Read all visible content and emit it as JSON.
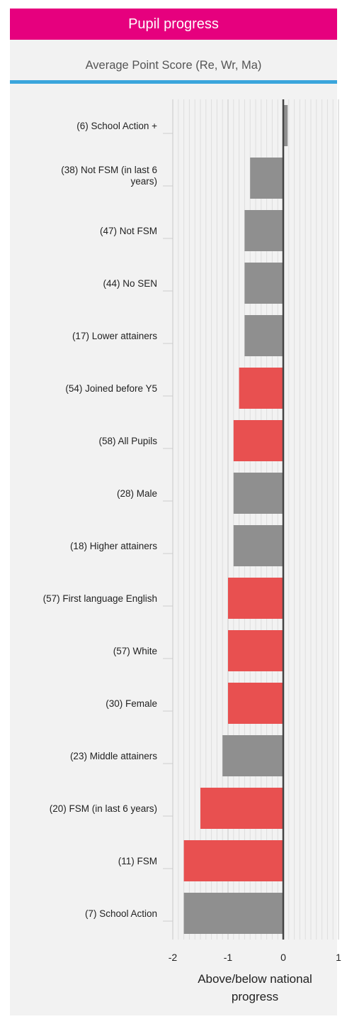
{
  "header": {
    "title": "Pupil progress"
  },
  "subtitle": "Average Point Score (Re, Wr, Ma)",
  "colors": {
    "header_bg": "#e6007e",
    "rule": "#3aa5dc",
    "red": "#e85050",
    "gray": "#8f8f8f"
  },
  "chart_data": {
    "type": "bar",
    "orientation": "horizontal",
    "xlabel": [
      "Above/below national",
      "progress"
    ],
    "xlim": [
      -2,
      1
    ],
    "xticks": [
      "-2",
      "-1",
      "0",
      "1"
    ],
    "grid": true,
    "categories": [
      [
        "(6) School Action +"
      ],
      [
        "(38) Not FSM (in last 6",
        "years)"
      ],
      [
        "(47) Not FSM"
      ],
      [
        "(44) No SEN"
      ],
      [
        "(17) Lower attainers"
      ],
      [
        "(54) Joined before Y5"
      ],
      [
        "(58) All Pupils"
      ],
      [
        "(28) Male"
      ],
      [
        "(18) Higher attainers"
      ],
      [
        "(57) First language English"
      ],
      [
        "(57) White"
      ],
      [
        "(30) Female"
      ],
      [
        "(23) Middle attainers"
      ],
      [
        "(20) FSM (in last 6 years)"
      ],
      [
        "(11) FSM"
      ],
      [
        "(7) School Action"
      ]
    ],
    "values": [
      0.08,
      -0.6,
      -0.7,
      -0.7,
      -0.7,
      -0.8,
      -0.9,
      -0.9,
      -0.9,
      -1.0,
      -1.0,
      -1.0,
      -1.1,
      -1.5,
      -1.8,
      -1.8
    ],
    "bar_colors": [
      "gray",
      "gray",
      "gray",
      "gray",
      "gray",
      "red",
      "red",
      "gray",
      "gray",
      "red",
      "red",
      "red",
      "gray",
      "red",
      "red",
      "gray"
    ]
  }
}
